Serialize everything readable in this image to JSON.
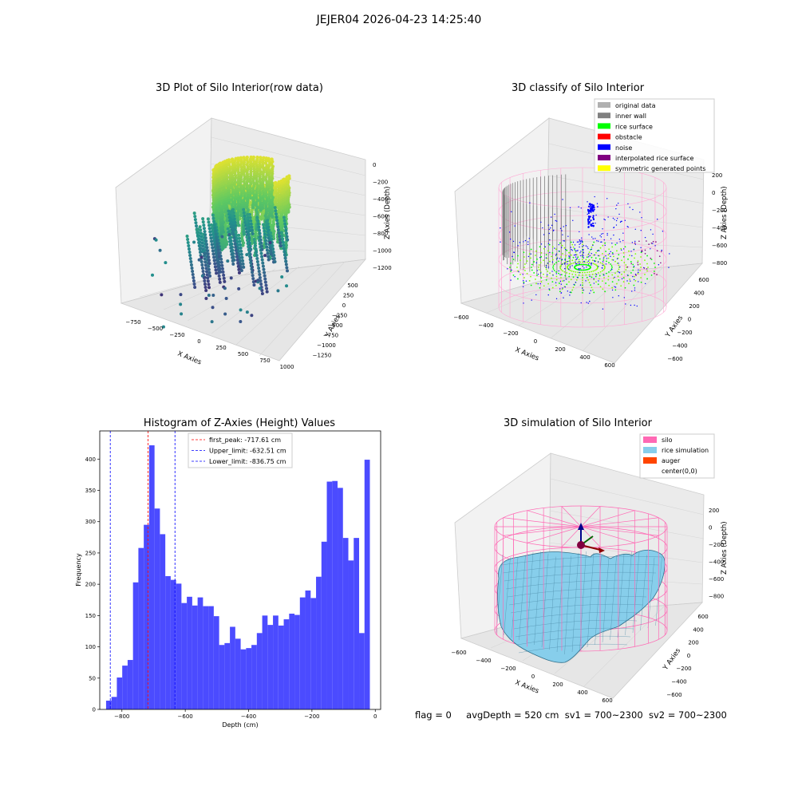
{
  "figure": {
    "suptitle": "JEJER04 2026-04-23 14:25:40",
    "status": {
      "flag": "flag = 0",
      "avg_depth": "avgDepth = 520 cm",
      "sv1": "sv1 = 700~2300",
      "sv2": "sv2 = 700~2300"
    }
  },
  "colors": {
    "bars": "#4b4bff",
    "silo": "#ff69b4",
    "rice_sim": "#87ceeb",
    "auger": "#ff4500",
    "inner_wall": "#808080",
    "rice_surface": "#00ff00",
    "obstacle": "#ff0000",
    "noise": "#0000ff",
    "interp": "#800080",
    "symmetric": "#ffff00",
    "original": "#b0b0b0"
  },
  "chart_data": [
    {
      "type": "scatter",
      "subtype": "3d",
      "title": "3D Plot of Silo Interior(row data)",
      "xlabel": "X Axies",
      "ylabel": "Y Axies",
      "zlabel": "Z Axies (Depth)",
      "x_ticks": [
        "−750",
        "−500",
        "−250",
        "0",
        "250",
        "500",
        "750",
        "1000"
      ],
      "y_ticks": [
        "500",
        "250",
        "0",
        "−250",
        "−500",
        "−750",
        "−1000",
        "−1250"
      ],
      "z_ticks": [
        "0",
        "−200",
        "−400",
        "−600",
        "−800",
        "−1000",
        "−1200"
      ],
      "colormap": "viridis"
    },
    {
      "type": "scatter",
      "subtype": "3d",
      "title": "3D classify of Silo Interior",
      "xlabel": "X Axies",
      "ylabel": "Y Axies",
      "zlabel": "Z Axies (Depth)",
      "x_ticks": [
        "−600",
        "−400",
        "−200",
        "0",
        "200",
        "400",
        "600"
      ],
      "y_ticks": [
        "600",
        "400",
        "200",
        "0",
        "−200",
        "−400",
        "−600"
      ],
      "z_ticks": [
        "200",
        "0",
        "−200",
        "−400",
        "−600",
        "−800"
      ],
      "legend": [
        "original data",
        "inner wall",
        "rice surface",
        "obstacle",
        "noise",
        "interpolated rice surface",
        "symmetric generated points"
      ],
      "legend_placement": "top-right"
    },
    {
      "type": "bar",
      "subtype": "histogram",
      "title": "Histogram of Z-Axies (Height) Values",
      "xlabel": "Depth (cm)",
      "ylabel": "Frequency",
      "xlim": [
        -870,
        17
      ],
      "ylim": [
        0,
        445
      ],
      "x_ticks": [
        -800,
        -600,
        -400,
        -200,
        0
      ],
      "x_tick_labels": [
        "−800",
        "−600",
        "−400",
        "−200",
        "0"
      ],
      "y_ticks": [
        0,
        50,
        100,
        150,
        200,
        250,
        300,
        350,
        400
      ],
      "bin_start": -850,
      "bin_width": 17,
      "values": [
        14,
        20,
        51,
        70,
        79,
        203,
        258,
        295,
        422,
        321,
        280,
        213,
        207,
        201,
        170,
        180,
        166,
        179,
        165,
        165,
        149,
        103,
        106,
        132,
        113,
        96,
        98,
        103,
        122,
        150,
        135,
        150,
        134,
        144,
        153,
        151,
        179,
        190,
        178,
        212,
        268,
        364,
        365,
        354,
        274,
        238,
        274,
        122,
        399
      ],
      "lines": [
        {
          "label": "first_peak: -717.61 cm",
          "x": -717.61,
          "color": "#ff0000"
        },
        {
          "label": "Upper_limit: -632.51 cm",
          "x": -632.51,
          "color": "#0000ff"
        },
        {
          "label": "Lower_limit: -836.75 cm",
          "x": -836.75,
          "color": "#0000ff"
        }
      ],
      "legend_placement": "top-center"
    },
    {
      "type": "area",
      "subtype": "3d-surface",
      "title": "3D simulation of Silo Interior",
      "xlabel": "X Axies",
      "ylabel": "Y Axies",
      "zlabel": "Z Axies (Depth)",
      "x_ticks": [
        "−600",
        "−400",
        "−200",
        "0",
        "200",
        "400",
        "600"
      ],
      "y_ticks": [
        "600",
        "400",
        "200",
        "0",
        "−200",
        "−400",
        "−600"
      ],
      "z_ticks": [
        "200",
        "0",
        "−200",
        "−400",
        "−600",
        "−800"
      ],
      "legend": [
        "silo",
        "rice simulation",
        "auger",
        "center(0,0)"
      ],
      "legend_placement": "top-right"
    }
  ]
}
